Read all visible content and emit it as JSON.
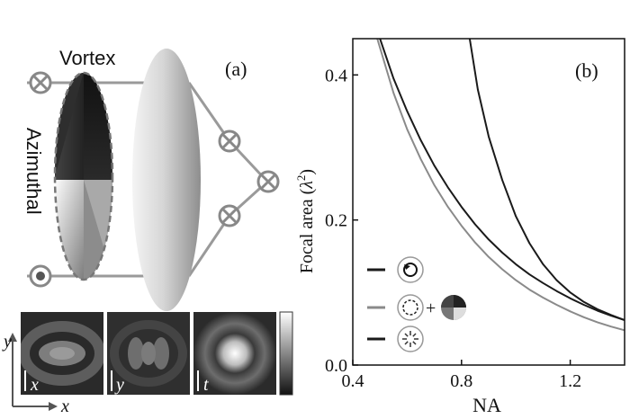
{
  "panel_a": {
    "label": "(a)",
    "vortex_label": "Vortex",
    "azimuthal_label": "Azimuthal",
    "insets": [
      {
        "component": "x"
      },
      {
        "component": "y"
      },
      {
        "component": "t"
      }
    ],
    "axis_y_label": "y",
    "axis_x_label": "x"
  },
  "chart_data": {
    "type": "line",
    "panel_label": "(b)",
    "xlabel": "NA",
    "ylabel_text": "Focal area (",
    "ylabel_symbol": "λ",
    "ylabel_exp": "2",
    "ylabel_close": ")",
    "xlim": [
      0.4,
      1.4
    ],
    "ylim": [
      0.0,
      0.45
    ],
    "x_ticks": [
      0.4,
      0.8,
      1.2
    ],
    "x_tick_labels": [
      "0.4",
      "0.8",
      "1.2"
    ],
    "y_ticks": [
      0.0,
      0.2,
      0.4
    ],
    "y_tick_labels": [
      "0.0",
      "0.2",
      "0.4"
    ],
    "series": [
      {
        "color": "#1a1a1a",
        "x": [
          0.83,
          0.86,
          0.9,
          0.95,
          1.0,
          1.05,
          1.1,
          1.15,
          1.2,
          1.25,
          1.3,
          1.35,
          1.4
        ],
        "y": [
          0.45,
          0.38,
          0.315,
          0.255,
          0.205,
          0.168,
          0.139,
          0.117,
          0.1,
          0.087,
          0.077,
          0.069,
          0.062
        ]
      },
      {
        "color": "#1a1a1a",
        "x": [
          0.5,
          0.55,
          0.6,
          0.65,
          0.7,
          0.75,
          0.8,
          0.85,
          0.9,
          0.95,
          1.0,
          1.05,
          1.1,
          1.15,
          1.2,
          1.25,
          1.3,
          1.35,
          1.4
        ],
        "y": [
          0.45,
          0.395,
          0.35,
          0.31,
          0.275,
          0.245,
          0.218,
          0.194,
          0.173,
          0.155,
          0.139,
          0.125,
          0.113,
          0.102,
          0.092,
          0.083,
          0.075,
          0.068,
          0.062
        ]
      },
      {
        "color": "#8a8a8a",
        "x": [
          0.49,
          0.55,
          0.6,
          0.65,
          0.7,
          0.75,
          0.8,
          0.85,
          0.9,
          0.95,
          1.0,
          1.05,
          1.1,
          1.15,
          1.2,
          1.25,
          1.3,
          1.35,
          1.4
        ],
        "y": [
          0.45,
          0.375,
          0.325,
          0.284,
          0.248,
          0.218,
          0.192,
          0.169,
          0.149,
          0.132,
          0.117,
          0.104,
          0.093,
          0.083,
          0.074,
          0.066,
          0.059,
          0.053,
          0.048
        ]
      }
    ],
    "legend": [
      {
        "color": "#1a1a1a",
        "icon": "vortex-ring-icon"
      },
      {
        "color": "#8a8a8a",
        "icon": "azimuthal-plus-vortex-icon",
        "joiner": "+"
      },
      {
        "color": "#1a1a1a",
        "icon": "radial-arrows-icon"
      }
    ]
  }
}
